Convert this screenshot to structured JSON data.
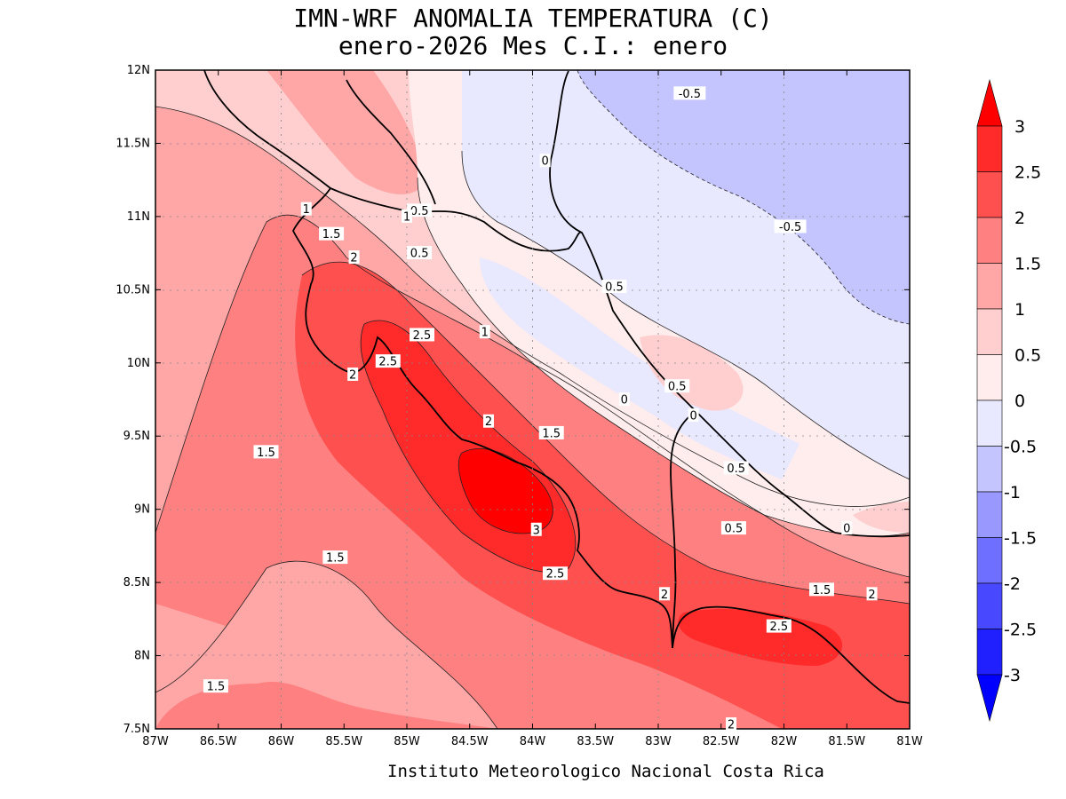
{
  "title": {
    "line1": "IMN-WRF  ANOMALIA TEMPERATURA (C)",
    "line2": "enero-2026 Mes C.I.: enero"
  },
  "credit": "Instituto Meteorologico Nacional Costa Rica",
  "axes": {
    "lon_ticks": [
      "87W",
      "86.5W",
      "86W",
      "85.5W",
      "85W",
      "84.5W",
      "84W",
      "83.5W",
      "83W",
      "82.5W",
      "82W",
      "81.5W",
      "81W"
    ],
    "lat_ticks": [
      "12N",
      "11.5N",
      "11N",
      "10.5N",
      "10N",
      "9.5N",
      "9N",
      "8.5N",
      "8N",
      "7.5N"
    ],
    "lon_range": [
      -87,
      -81
    ],
    "lat_range": [
      7.5,
      12
    ],
    "grid": "dotted"
  },
  "colorbar": {
    "labels": [
      "3",
      "2.5",
      "2",
      "1.5",
      "1",
      "0.5",
      "0",
      "-0.5",
      "-1",
      "-1.5",
      "-2",
      "-2.5",
      "-3"
    ],
    "colors": [
      "#ff0000",
      "#ff2a2a",
      "#ff5050",
      "#ff8080",
      "#ffa6a6",
      "#ffcece",
      "#ffecec",
      "#e8e8ff",
      "#c4c4ff",
      "#9898ff",
      "#6e6eff",
      "#4848ff",
      "#2020ff",
      "#0000ff"
    ]
  },
  "contour_labels": [
    {
      "text": "-0.5",
      "lon": -82.75,
      "lat": 11.84
    },
    {
      "text": "-0.5",
      "lon": -81.95,
      "lat": 10.93
    },
    {
      "text": "0",
      "lon": -83.9,
      "lat": 11.38
    },
    {
      "text": "0.5",
      "lon": -84.9,
      "lat": 11.04
    },
    {
      "text": "1",
      "lon": -85.8,
      "lat": 11.05
    },
    {
      "text": "1",
      "lon": -85.0,
      "lat": 11.0
    },
    {
      "text": "1.5",
      "lon": -85.6,
      "lat": 10.88
    },
    {
      "text": "2",
      "lon": -85.42,
      "lat": 10.72
    },
    {
      "text": "0.5",
      "lon": -84.9,
      "lat": 10.75
    },
    {
      "text": "0.5",
      "lon": -83.35,
      "lat": 10.52
    },
    {
      "text": "2.5",
      "lon": -84.88,
      "lat": 10.19
    },
    {
      "text": "1",
      "lon": -84.38,
      "lat": 10.21
    },
    {
      "text": "2.5",
      "lon": -85.15,
      "lat": 10.01
    },
    {
      "text": "2",
      "lon": -85.43,
      "lat": 9.92
    },
    {
      "text": "0.5",
      "lon": -82.85,
      "lat": 9.84
    },
    {
      "text": "0",
      "lon": -83.27,
      "lat": 9.75
    },
    {
      "text": "0",
      "lon": -82.72,
      "lat": 9.64
    },
    {
      "text": "2",
      "lon": -84.35,
      "lat": 9.6
    },
    {
      "text": "1.5",
      "lon": -83.85,
      "lat": 9.52
    },
    {
      "text": "1.5",
      "lon": -86.12,
      "lat": 9.39
    },
    {
      "text": "0.5",
      "lon": -82.38,
      "lat": 9.28
    },
    {
      "text": "3",
      "lon": -83.97,
      "lat": 8.86
    },
    {
      "text": "0.5",
      "lon": -82.4,
      "lat": 8.87
    },
    {
      "text": "0",
      "lon": -81.5,
      "lat": 8.87
    },
    {
      "text": "1.5",
      "lon": -85.57,
      "lat": 8.67
    },
    {
      "text": "2.5",
      "lon": -83.82,
      "lat": 8.56
    },
    {
      "text": "1.5",
      "lon": -81.7,
      "lat": 8.45
    },
    {
      "text": "2",
      "lon": -81.3,
      "lat": 8.42
    },
    {
      "text": "2",
      "lon": -82.95,
      "lat": 8.42
    },
    {
      "text": "2.5",
      "lon": -82.04,
      "lat": 8.2
    },
    {
      "text": "1.5",
      "lon": -86.52,
      "lat": 7.79
    },
    {
      "text": "2",
      "lon": -82.42,
      "lat": 7.53
    }
  ]
}
